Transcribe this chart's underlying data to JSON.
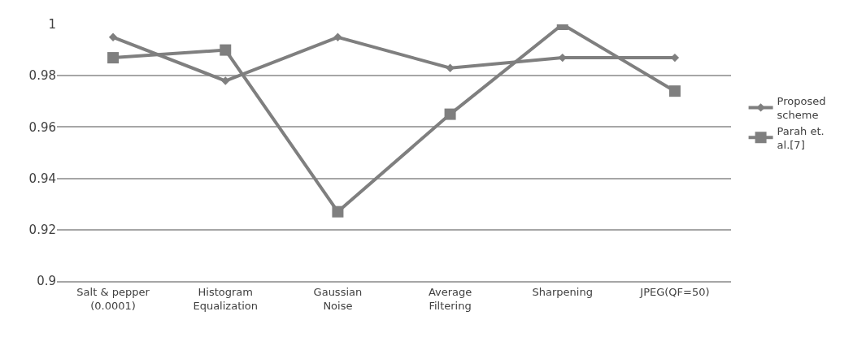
{
  "chart_data": {
    "type": "line",
    "categories": [
      "Salt & pepper\n(0.0001)",
      "Histogram\nEqualization",
      "Gaussian\nNoise",
      "Average\nFiltering",
      "Sharpening",
      "JPEG(QF=50)"
    ],
    "series": [
      {
        "name": "Proposed scheme",
        "color": "#7f7f7f",
        "marker": "diamond",
        "values": [
          0.995,
          0.978,
          0.995,
          0.983,
          0.987,
          0.987
        ]
      },
      {
        "name": "Parah et. al.[7]",
        "color": "#7f7f7f",
        "marker": "square",
        "values": [
          0.987,
          0.99,
          0.927,
          0.965,
          1.0,
          0.974
        ]
      }
    ],
    "ylim": [
      0.9,
      1.0
    ],
    "yticks": [
      0.9,
      0.92,
      0.94,
      0.96,
      0.98,
      1
    ],
    "grid": "y",
    "legend": "right"
  }
}
